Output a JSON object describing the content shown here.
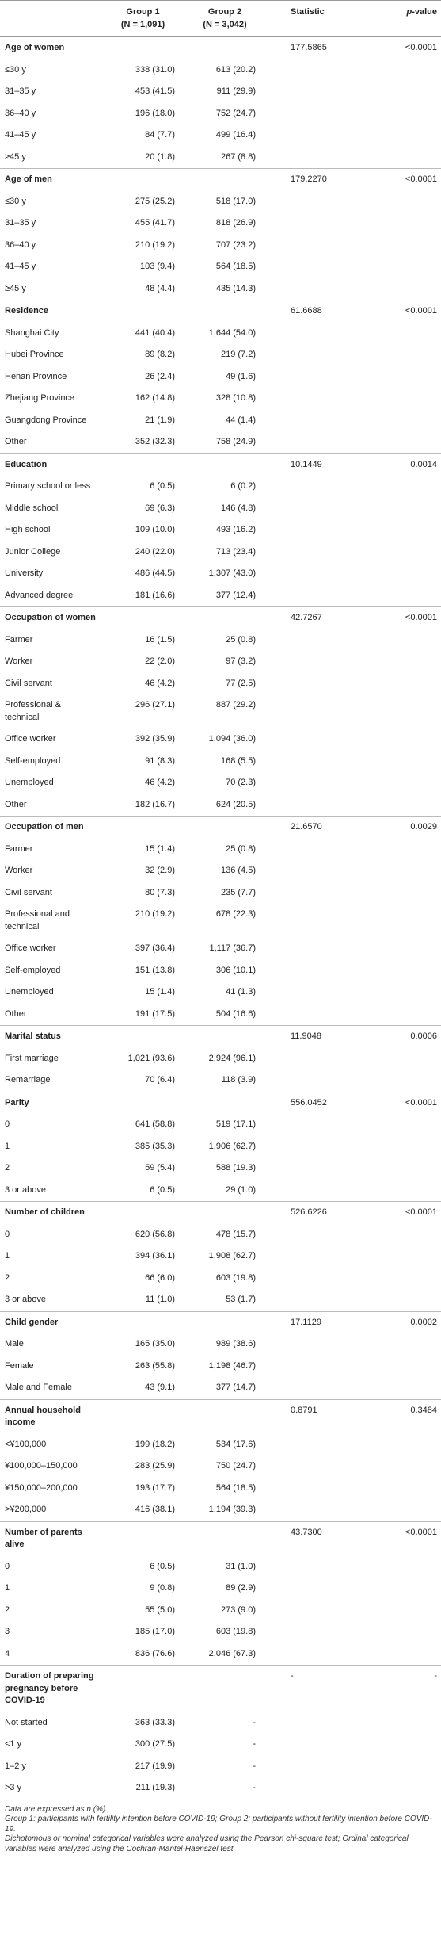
{
  "table": {
    "header": {
      "group1": "Group 1",
      "group1_n": "(N = 1,091)",
      "group2": "Group 2",
      "group2_n": "(N = 3,042)",
      "statistic": "Statistic",
      "p_value": "p-value"
    },
    "sections": [
      {
        "label": "Age of women",
        "statistic": "177.5865",
        "p_value": "<0.0001",
        "rows": [
          [
            "≤30 y",
            "338 (31.0)",
            "613 (20.2)"
          ],
          [
            "31–35 y",
            "453 (41.5)",
            "911 (29.9)"
          ],
          [
            "36–40 y",
            "196 (18.0)",
            "752 (24.7)"
          ],
          [
            "41–45 y",
            "84 (7.7)",
            "499 (16.4)"
          ],
          [
            "≥45 y",
            "20 (1.8)",
            "267 (8.8)"
          ]
        ]
      },
      {
        "label": "Age of men",
        "statistic": "179.2270",
        "p_value": "<0.0001",
        "rows": [
          [
            "≤30 y",
            "275 (25.2)",
            "518 (17.0)"
          ],
          [
            "31–35 y",
            "455 (41.7)",
            "818 (26.9)"
          ],
          [
            "36–40 y",
            "210 (19.2)",
            "707 (23.2)"
          ],
          [
            "41–45 y",
            "103 (9.4)",
            "564 (18.5)"
          ],
          [
            "≥45 y",
            "48 (4.4)",
            "435 (14.3)"
          ]
        ]
      },
      {
        "label": "Residence",
        "statistic": "61.6688",
        "p_value": "<0.0001",
        "rows": [
          [
            "Shanghai City",
            "441 (40.4)",
            "1,644 (54.0)"
          ],
          [
            "Hubei Province",
            "89 (8.2)",
            "219 (7.2)"
          ],
          [
            "Henan Province",
            "26 (2.4)",
            "49 (1.6)"
          ],
          [
            "Zhejiang Province",
            "162 (14.8)",
            "328 (10.8)"
          ],
          [
            "Guangdong Province",
            "21 (1.9)",
            "44 (1.4)"
          ],
          [
            "Other",
            "352 (32.3)",
            "758 (24.9)"
          ]
        ]
      },
      {
        "label": "Education",
        "statistic": "10.1449",
        "p_value": "0.0014",
        "rows": [
          [
            "Primary school or less",
            "6 (0.5)",
            "6 (0.2)"
          ],
          [
            "Middle school",
            "69 (6.3)",
            "146 (4.8)"
          ],
          [
            "High school",
            "109 (10.0)",
            "493 (16.2)"
          ],
          [
            "Junior College",
            "240 (22.0)",
            "713 (23.4)"
          ],
          [
            "University",
            "486 (44.5)",
            "1,307 (43.0)"
          ],
          [
            "Advanced degree",
            "181 (16.6)",
            "377 (12.4)"
          ]
        ]
      },
      {
        "label": "Occupation of women",
        "statistic": "42.7267",
        "p_value": "<0.0001",
        "rows": [
          [
            "Farmer",
            "16 (1.5)",
            "25 (0.8)"
          ],
          [
            "Worker",
            "22 (2.0)",
            "97 (3.2)"
          ],
          [
            "Civil servant",
            "46 (4.2)",
            "77 (2.5)"
          ],
          [
            "Professional & technical",
            "296 (27.1)",
            "887 (29.2)"
          ],
          [
            "Office worker",
            "392 (35.9)",
            "1,094 (36.0)"
          ],
          [
            "Self-employed",
            "91 (8.3)",
            "168 (5.5)"
          ],
          [
            "Unemployed",
            "46 (4.2)",
            "70 (2.3)"
          ],
          [
            "Other",
            "182 (16.7)",
            "624 (20.5)"
          ]
        ]
      },
      {
        "label": "Occupation of men",
        "statistic": "21.6570",
        "p_value": "0.0029",
        "rows": [
          [
            "Farmer",
            "15 (1.4)",
            "25 (0.8)"
          ],
          [
            "Worker",
            "32 (2.9)",
            "136 (4.5)"
          ],
          [
            "Civil servant",
            "80 (7.3)",
            "235 (7.7)"
          ],
          [
            "Professional and technical",
            "210 (19.2)",
            "678 (22.3)"
          ],
          [
            "Office worker",
            "397 (36.4)",
            "1,117 (36.7)"
          ],
          [
            "Self-employed",
            "151 (13.8)",
            "306 (10.1)"
          ],
          [
            "Unemployed",
            "15 (1.4)",
            "41 (1.3)"
          ],
          [
            "Other",
            "191 (17.5)",
            "504 (16.6)"
          ]
        ]
      },
      {
        "label": "Marital status",
        "statistic": "11.9048",
        "p_value": "0.0006",
        "rows": [
          [
            "First marriage",
            "1,021 (93.6)",
            "2,924 (96.1)"
          ],
          [
            "Remarriage",
            "70 (6.4)",
            "118 (3.9)"
          ]
        ]
      },
      {
        "label": "Parity",
        "statistic": "556.0452",
        "p_value": "<0.0001",
        "rows": [
          [
            "0",
            "641 (58.8)",
            "519 (17.1)"
          ],
          [
            "1",
            "385 (35.3)",
            "1,906 (62.7)"
          ],
          [
            "2",
            "59 (5.4)",
            "588 (19.3)"
          ],
          [
            "3 or above",
            "6 (0.5)",
            "29 (1.0)"
          ]
        ]
      },
      {
        "label": "Number of children",
        "statistic": "526.6226",
        "p_value": "<0.0001",
        "rows": [
          [
            "0",
            "620 (56.8)",
            "478 (15.7)"
          ],
          [
            "1",
            "394 (36.1)",
            "1,908 (62.7)"
          ],
          [
            "2",
            "66 (6.0)",
            "603 (19.8)"
          ],
          [
            "3 or above",
            "11 (1.0)",
            "53 (1.7)"
          ]
        ]
      },
      {
        "label": "Child gender",
        "statistic": "17.1129",
        "p_value": "0.0002",
        "rows": [
          [
            "Male",
            "165 (35.0)",
            "989 (38.6)"
          ],
          [
            "Female",
            "263 (55.8)",
            "1,198 (46.7)"
          ],
          [
            "Male and Female",
            "43 (9.1)",
            "377 (14.7)"
          ]
        ]
      },
      {
        "label": "Annual household income",
        "statistic": "0.8791",
        "p_value": "0.3484",
        "rows": [
          [
            "<¥100,000",
            "199 (18.2)",
            "534 (17.6)"
          ],
          [
            "¥100,000–150,000",
            "283 (25.9)",
            "750 (24.7)"
          ],
          [
            "¥150,000–200,000",
            "193 (17.7)",
            "564 (18.5)"
          ],
          [
            ">¥200,000",
            "416 (38.1)",
            "1,194 (39.3)"
          ]
        ]
      },
      {
        "label": "Number of parents alive",
        "statistic": "43.7300",
        "p_value": "<0.0001",
        "rows": [
          [
            "0",
            "6 (0.5)",
            "31 (1.0)"
          ],
          [
            "1",
            "9 (0.8)",
            "89 (2.9)"
          ],
          [
            "2",
            "55 (5.0)",
            "273 (9.0)"
          ],
          [
            "3",
            "185 (17.0)",
            "603 (19.8)"
          ],
          [
            "4",
            "836 (76.6)",
            "2,046 (67.3)"
          ]
        ]
      },
      {
        "label": "Duration of preparing pregnancy before COVID-19",
        "statistic": "-",
        "p_value": "-",
        "rows": [
          [
            "Not started",
            "363 (33.3)",
            "-"
          ],
          [
            "<1 y",
            "300 (27.5)",
            "-"
          ],
          [
            "1–2 y",
            "217 (19.9)",
            "-"
          ],
          [
            ">3 y",
            "211 (19.3)",
            "-"
          ]
        ]
      }
    ]
  },
  "notes": [
    "Data are expressed as n (%).",
    "Group 1: participants with fertility intention before COVID-19; Group 2: participants without fertility intention before COVID-19.",
    "Dichotomous or nominal categorical variables were analyzed using the Pearson chi-square test; Ordinal categorical variables were analyzed using the Cochran-Mantel-Haenszel test."
  ]
}
